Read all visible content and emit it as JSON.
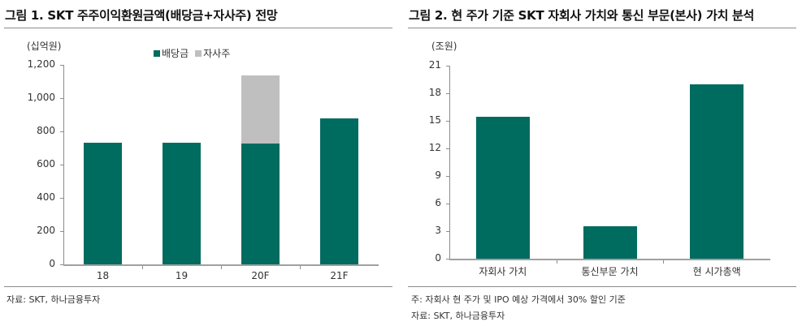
{
  "colors": {
    "dividend": "#006b5f",
    "buyback": "#bfbfbf",
    "axis": "#8c8c8c"
  },
  "left": {
    "title": "그림 1. SKT 주주이익환원금액(배당금+자사주) 전망",
    "unit": "(십억원)",
    "legend": [
      {
        "label": "배당금",
        "color": "#006b5f"
      },
      {
        "label": "자사주",
        "color": "#bfbfbf"
      }
    ],
    "yticks": [
      "0",
      "200",
      "400",
      "600",
      "800",
      "1,000",
      "1,200"
    ],
    "xlabels": [
      "18",
      "19",
      "20F",
      "21F"
    ],
    "source": "자료: SKT, 하나금융투자"
  },
  "right": {
    "title": "그림 2. 현 주가 기준 SKT 자회사 가치와 통신 부문(본사) 가치 분석",
    "unit": "(조원)",
    "yticks": [
      "0",
      "3",
      "6",
      "9",
      "12",
      "15",
      "18",
      "21"
    ],
    "xlabels": [
      "자회사 가치",
      "통신부문 가치",
      "현 시가총액"
    ],
    "note": "주: 자회사 현 주가 및 IPO 예상 가격에서 30% 할인 기준",
    "source": "자료: SKT, 하나금융투자"
  },
  "chart_data": [
    {
      "type": "bar",
      "stacked": true,
      "title": "그림 1. SKT 주주이익환원금액(배당금+자사주) 전망",
      "ylabel": "(십억원)",
      "xlabel": "",
      "categories": [
        "18",
        "19",
        "20F",
        "21F"
      ],
      "series": [
        {
          "name": "배당금",
          "values": [
            730,
            730,
            725,
            880
          ],
          "color": "#006b5f"
        },
        {
          "name": "자사주",
          "values": [
            0,
            0,
            410,
            0
          ],
          "color": "#bfbfbf"
        }
      ],
      "ylim": [
        0,
        1200
      ],
      "yticks": [
        0,
        200,
        400,
        600,
        800,
        1000,
        1200
      ],
      "grid": false,
      "legend_position": "top"
    },
    {
      "type": "bar",
      "title": "그림 2. 현 주가 기준 SKT 자회사 가치와 통신 부문(본사) 가치 분석",
      "ylabel": "(조원)",
      "xlabel": "",
      "categories": [
        "자회사 가치",
        "통신부문 가치",
        "현 시가총액"
      ],
      "values": [
        15.4,
        3.5,
        19.0
      ],
      "color": "#006b5f",
      "ylim": [
        0,
        21
      ],
      "yticks": [
        0,
        3,
        6,
        9,
        12,
        15,
        18,
        21
      ],
      "grid": false,
      "annotations": [
        "주: 자회사 현 주가 및 IPO 예상 가격에서 30% 할인 기준"
      ]
    }
  ]
}
